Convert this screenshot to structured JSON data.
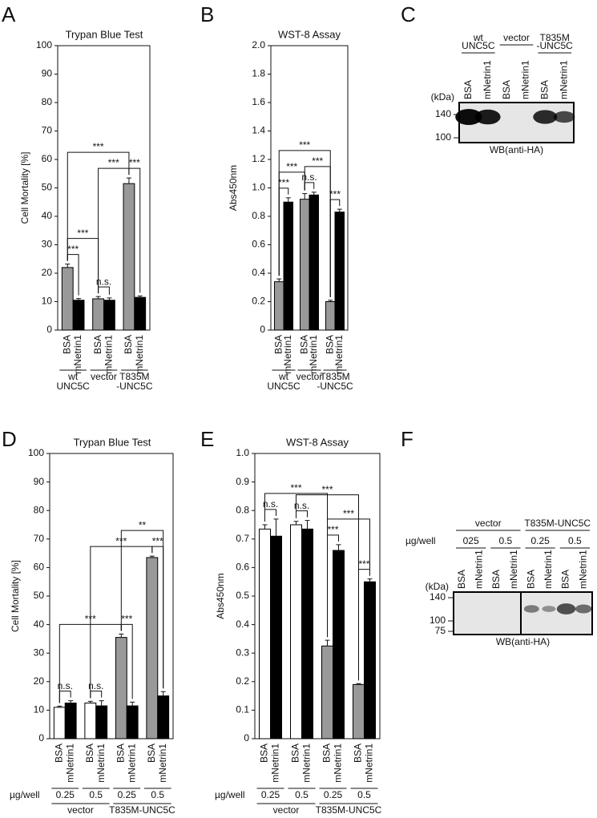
{
  "chart_data": [
    {
      "type": "bar",
      "panel": "A",
      "title": "Trypan Blue Test",
      "ylabel": "Cell Mortality [%]",
      "ylim": [
        0,
        100
      ],
      "yticks": [
        0,
        10,
        20,
        30,
        40,
        50,
        60,
        70,
        80,
        90,
        100
      ],
      "categories": [
        "BSA",
        "mNetrin1",
        "BSA",
        "mNetrin1",
        "BSA",
        "mNetrin1"
      ],
      "values": [
        22,
        10.5,
        11,
        10.5,
        51.5,
        11.5
      ],
      "errors": [
        1.2,
        0.6,
        0.8,
        0.8,
        2,
        0.5
      ],
      "colors": [
        "#999999",
        "#000000",
        "#999999",
        "#000000",
        "#999999",
        "#000000"
      ],
      "groups": [
        [
          "wt",
          "UNC5C"
        ],
        [
          "vector"
        ],
        [
          "T835M",
          "-UNC5C"
        ]
      ],
      "brackets": [
        {
          "from": 0,
          "to": 1,
          "label": "***"
        },
        {
          "from": 2,
          "to": 3,
          "label": "n.s."
        },
        {
          "from": 4,
          "to": 5,
          "label": "***"
        },
        {
          "from": 0,
          "to": 2,
          "label": "***"
        },
        {
          "from": 2,
          "to": 4,
          "label": "***"
        },
        {
          "from": 0,
          "to": 4,
          "label": "***"
        }
      ]
    },
    {
      "type": "bar",
      "panel": "B",
      "title": "WST-8 Assay",
      "ylabel": "Abs450nm",
      "ylim": [
        0,
        2
      ],
      "yticks": [
        0,
        0.2,
        0.4,
        0.6,
        0.8,
        {
          "value": 1,
          "label": "1.0"
        },
        1.2,
        1.4,
        1.6,
        1.8,
        {
          "value": 2,
          "label": "2.0"
        }
      ],
      "categories": [
        "BSA",
        "mNetrin1",
        "BSA",
        "mNetrin1",
        "BSA",
        "mNetrin1"
      ],
      "values": [
        0.34,
        0.9,
        0.92,
        0.95,
        0.2,
        0.83
      ],
      "errors": [
        0.02,
        0.03,
        0.04,
        0.02,
        0.01,
        0.02
      ],
      "colors": [
        "#999999",
        "#000000",
        "#999999",
        "#000000",
        "#999999",
        "#000000"
      ],
      "groups": [
        [
          "wt",
          "UNC5C"
        ],
        [
          "vector"
        ],
        [
          "T835M",
          "-UNC5C"
        ]
      ],
      "brackets": [
        {
          "from": 0,
          "to": 1,
          "label": "***"
        },
        {
          "from": 2,
          "to": 3,
          "label": "n.s."
        },
        {
          "from": 4,
          "to": 5,
          "label": "***"
        },
        {
          "from": 0,
          "to": 2,
          "label": "***"
        },
        {
          "from": 2,
          "to": 4,
          "label": "***"
        },
        {
          "from": 0,
          "to": 4,
          "label": "***"
        }
      ]
    },
    {
      "type": "bar",
      "panel": "D",
      "title": "Trypan Blue Test",
      "ylabel": "Cell Mortality [%]",
      "ylim": [
        0,
        100
      ],
      "yticks": [
        0,
        10,
        20,
        30,
        40,
        50,
        60,
        70,
        80,
        90,
        100
      ],
      "categories": [
        "BSA",
        "mNetrin1",
        "BSA",
        "mNetrin1",
        "BSA",
        "mNetrin1",
        "BSA",
        "mNetrin1"
      ],
      "values": [
        11,
        12.5,
        12.5,
        11.5,
        35.5,
        11.5,
        63.5,
        15
      ],
      "errors": [
        0.4,
        0.8,
        0.6,
        1.8,
        1.2,
        1.3,
        0.5,
        1.5
      ],
      "colors": [
        "#ffffff",
        "#000000",
        "#ffffff",
        "#000000",
        "#999999",
        "#000000",
        "#999999",
        "#000000"
      ],
      "dose_label": "µg/well",
      "doses": [
        "0.25",
        "0.5",
        "0.25",
        "0.5"
      ],
      "groups": [
        [
          "vector"
        ],
        [
          "T835M-UNC5C"
        ]
      ],
      "brackets": [
        {
          "from": 0,
          "to": 1,
          "label": "n.s."
        },
        {
          "from": 2,
          "to": 3,
          "label": "n.s."
        },
        {
          "from": 4,
          "to": 5,
          "label": "***"
        },
        {
          "from": 6,
          "to": 7,
          "label": "***"
        },
        {
          "from": 0,
          "to": 4,
          "label": "***"
        },
        {
          "from": 2,
          "to": 6,
          "label": "***"
        },
        {
          "from": 4,
          "to": 7,
          "label": "**"
        }
      ]
    },
    {
      "type": "bar",
      "panel": "E",
      "title": "WST-8 Assay",
      "ylabel": "Abs450nm",
      "ylim": [
        0,
        1
      ],
      "yticks": [
        0,
        0.1,
        0.2,
        0.3,
        0.4,
        0.5,
        0.6,
        0.7,
        0.8,
        0.9,
        {
          "value": 1,
          "label": "1.0"
        }
      ],
      "categories": [
        "BSA",
        "mNetrin1",
        "BSA",
        "mNetrin1",
        "BSA",
        "mNetrin1",
        "BSA",
        "mNetrin1"
      ],
      "values": [
        0.735,
        0.71,
        0.75,
        0.735,
        0.325,
        0.66,
        0.19,
        0.55
      ],
      "errors": [
        0.015,
        0.06,
        0.012,
        0.03,
        0.02,
        0.02,
        0.003,
        0.01
      ],
      "colors": [
        "#ffffff",
        "#000000",
        "#ffffff",
        "#000000",
        "#999999",
        "#000000",
        "#999999",
        "#000000"
      ],
      "dose_label": "µg/well",
      "doses": [
        "0.25",
        "0.5",
        "0.25",
        "0.5"
      ],
      "groups": [
        [
          "vector"
        ],
        [
          "T835M-UNC5C"
        ]
      ],
      "brackets": [
        {
          "from": 0,
          "to": 1,
          "label": "n.s."
        },
        {
          "from": 2,
          "to": 3,
          "label": "n.s."
        },
        {
          "from": 4,
          "to": 5,
          "label": "***"
        },
        {
          "from": 6,
          "to": 7,
          "label": "***"
        },
        {
          "from": 4,
          "to": 7,
          "label": "***"
        },
        {
          "from": 0,
          "to": 4,
          "label": "***"
        },
        {
          "from": 2,
          "to": 6,
          "label": "***"
        }
      ]
    }
  ],
  "blots": [
    {
      "panel": "C",
      "groups": [
        [
          "wt",
          "UNC5C"
        ],
        [
          "vector"
        ],
        [
          "T835M",
          "-UNC5C"
        ]
      ],
      "lanes": [
        "BSA",
        "mNetrin1",
        "BSA",
        "mNetrin1",
        "BSA",
        "mNetrin1"
      ],
      "kda_label": "(kDa)",
      "markers": [
        "140",
        "100"
      ],
      "caption": "WB(anti-HA)"
    },
    {
      "panel": "F",
      "groups": [
        [
          "vector"
        ],
        [
          "T835M-UNC5C"
        ]
      ],
      "dose_label": "µg/well",
      "doses": [
        "025",
        "0.5",
        "0.25",
        "0.5"
      ],
      "lanes": [
        "BSA",
        "mNetrin1",
        "BSA",
        "mNetrin1",
        "BSA",
        "mNetrin1",
        "BSA",
        "mNetrin1"
      ],
      "kda_label": "(kDa)",
      "markers": [
        "140",
        "100",
        "75"
      ],
      "caption": "WB(anti-HA)"
    }
  ]
}
